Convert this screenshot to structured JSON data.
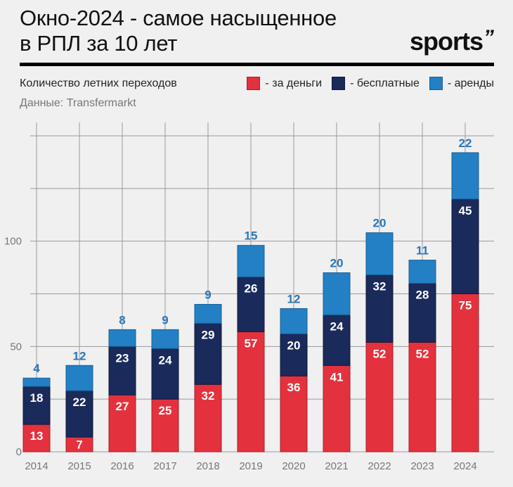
{
  "header": {
    "title_line1": "Окно-2024 - самое насыщенное",
    "title_line2": "в РПЛ за 10 лет",
    "logo_text": "sports",
    "logo_mark": "”",
    "subtitle": "Количество летних переходов",
    "source": "Данные: Transfermarkt"
  },
  "legend": [
    {
      "label": "- за деньги",
      "color": "#e3323d"
    },
    {
      "label": "- бесплатные",
      "color": "#1a2a5a"
    },
    {
      "label": "- аренды",
      "color": "#2380c4"
    }
  ],
  "chart_data": {
    "type": "bar",
    "stacked": true,
    "title": "Окно-2024 - самое насыщенное в РПЛ за 10 лет",
    "subtitle": "Количество летних переходов",
    "xlabel": "",
    "ylabel": "",
    "ylim": [
      0,
      150
    ],
    "yticks": [
      0,
      50,
      100
    ],
    "grid": true,
    "legend_position": "top-right",
    "categories": [
      "2014",
      "2015",
      "2016",
      "2017",
      "2018",
      "2019",
      "2020",
      "2021",
      "2022",
      "2023",
      "2024"
    ],
    "series": [
      {
        "name": "за деньги",
        "color": "#e3323d",
        "values": [
          13,
          7,
          27,
          25,
          32,
          57,
          36,
          41,
          52,
          52,
          75
        ]
      },
      {
        "name": "бесплатные",
        "color": "#1a2a5a",
        "values": [
          18,
          22,
          23,
          24,
          29,
          26,
          20,
          24,
          32,
          28,
          45
        ]
      },
      {
        "name": "аренды",
        "color": "#2380c4",
        "values": [
          4,
          12,
          8,
          9,
          9,
          15,
          12,
          20,
          20,
          11,
          22
        ]
      }
    ],
    "label_color_top": "#2a76b8",
    "grid_color": "#9a9a9a"
  }
}
